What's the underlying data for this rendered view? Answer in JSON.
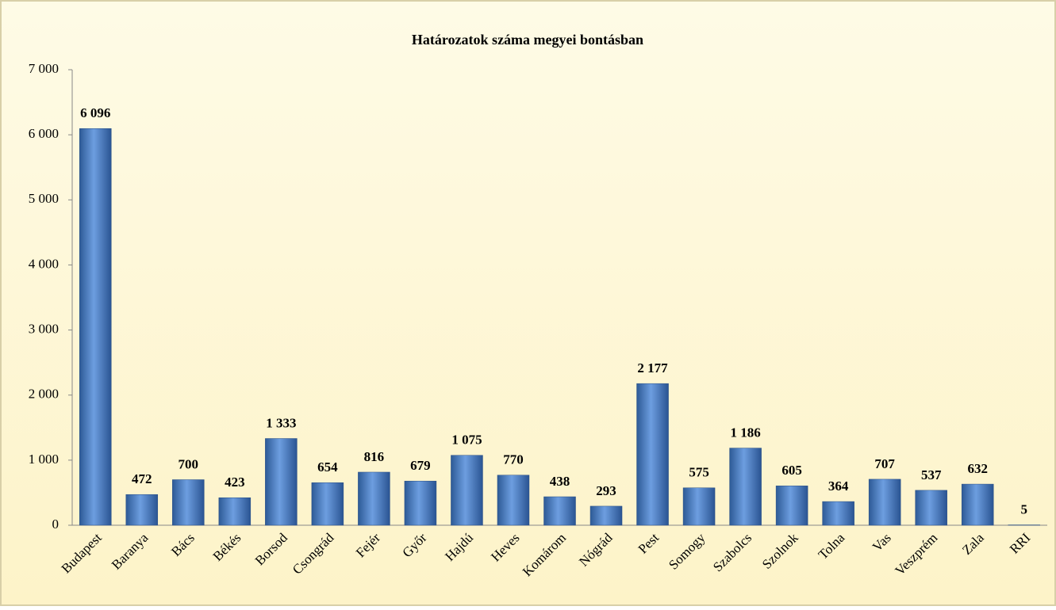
{
  "chart_data": {
    "type": "bar",
    "title": "Határozatok száma megyei bontásban",
    "categories": [
      "Budapest",
      "Baranya",
      "Bács",
      "Békés",
      "Borsod",
      "Csongrád",
      "Fejér",
      "Győr",
      "Hajdú",
      "Heves",
      "Komárom",
      "Nógrád",
      "Pest",
      "Somogy",
      "Szabolcs",
      "Szolnok",
      "Tolna",
      "Vas",
      "Veszprém",
      "Zala",
      "RRI"
    ],
    "values": [
      6096,
      472,
      700,
      423,
      1333,
      654,
      816,
      679,
      1075,
      770,
      438,
      293,
      2177,
      575,
      1186,
      605,
      364,
      707,
      537,
      632,
      5
    ],
    "value_labels": [
      "6 096",
      "472",
      "700",
      "423",
      "1 333",
      "654",
      "816",
      "679",
      "1 075",
      "770",
      "438",
      "293",
      "2 177",
      "575",
      "1 186",
      "605",
      "364",
      "707",
      "537",
      "632",
      "5"
    ],
    "color": "#4f81bd",
    "ylim": [
      0,
      7000
    ],
    "yticks": [
      0,
      {
        "value": 1000,
        "label": "1 000"
      },
      {
        "value": 2000,
        "label": "2 000"
      },
      {
        "value": 3000,
        "label": "3 000"
      },
      {
        "value": 4000,
        "label": "4 000"
      },
      {
        "value": 5000,
        "label": "5 000"
      },
      {
        "value": 6000,
        "label": "6 000"
      },
      {
        "value": 7000,
        "label": "7 000"
      }
    ],
    "grid": false
  }
}
